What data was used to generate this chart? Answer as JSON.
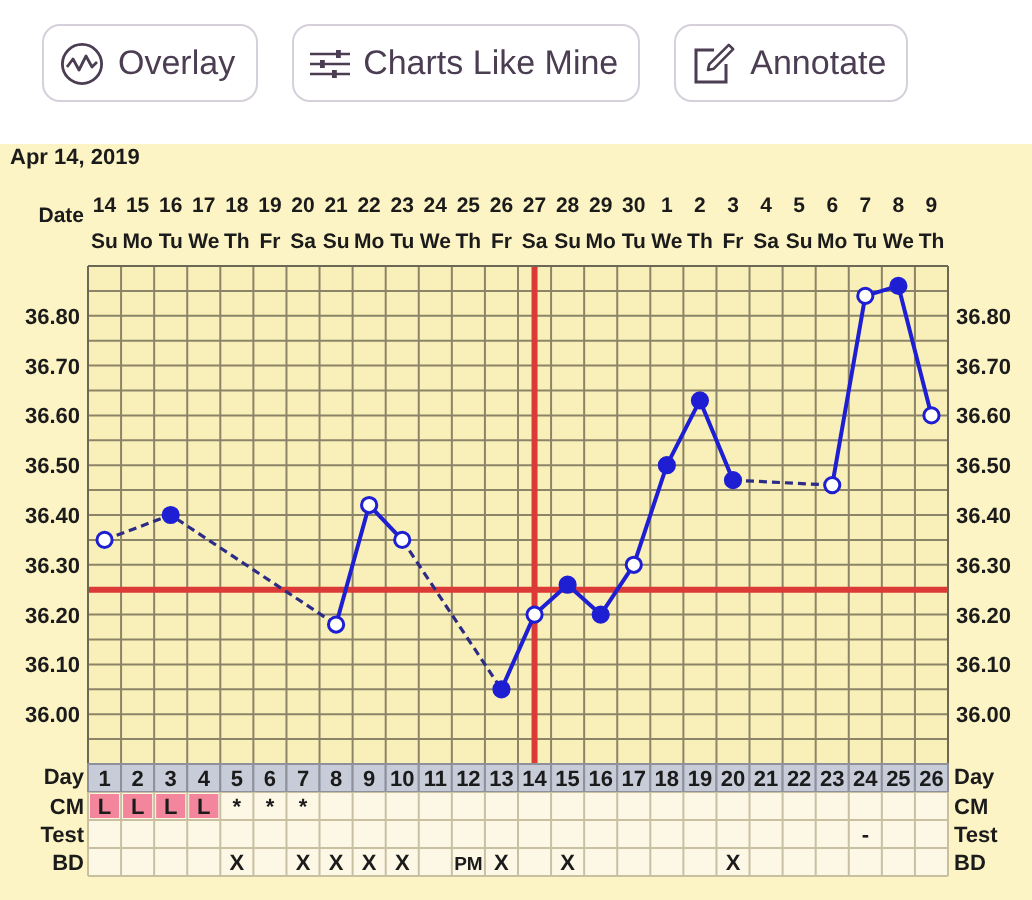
{
  "chart_data": [
    {
      "type": "other",
      "annotations": [
        "Overlay",
        "Charts Like Mine",
        "Annotate"
      ]
    },
    {
      "type": "line",
      "title": "Apr 14, 2019",
      "xlabel": "Day",
      "x2label": "Date",
      "x": [
        1,
        2,
        3,
        4,
        5,
        6,
        7,
        8,
        9,
        10,
        11,
        12,
        13,
        14,
        15,
        16,
        17,
        18,
        19,
        20,
        21,
        22,
        23,
        24,
        25,
        26
      ],
      "xlim": [
        0.5,
        26.5
      ],
      "xticks": [
        1,
        {
          "value": 1.5,
          "label": null
        },
        2,
        {
          "value": 2.5,
          "label": null
        },
        3,
        {
          "value": 3.5,
          "label": null
        },
        4,
        {
          "value": 4.5,
          "label": null
        },
        5,
        {
          "value": 5.5,
          "label": null
        },
        6,
        {
          "value": 6.5,
          "label": null
        },
        7,
        {
          "value": 7.5,
          "label": null
        },
        8,
        {
          "value": 8.5,
          "label": null
        },
        9,
        {
          "value": 9.5,
          "label": null
        },
        10,
        {
          "value": 10.5,
          "label": null
        },
        11,
        {
          "value": 11.5,
          "label": null
        },
        12,
        {
          "value": 12.5,
          "label": null
        },
        13,
        {
          "value": 13.5,
          "label": null
        },
        14,
        {
          "value": 14.5,
          "label": null
        },
        15,
        {
          "value": 15.5,
          "label": null
        },
        16,
        {
          "value": 16.5,
          "label": null
        },
        17,
        {
          "value": 17.5,
          "label": null
        },
        18,
        {
          "value": 18.5,
          "label": null
        },
        19,
        {
          "value": 19.5,
          "label": null
        },
        20,
        {
          "value": 20.5,
          "label": null
        },
        21,
        {
          "value": 21.5,
          "label": null
        },
        22,
        {
          "value": 22.5,
          "label": null
        },
        23,
        {
          "value": 23.5,
          "label": null
        },
        24,
        {
          "value": 24.5,
          "label": null
        },
        25,
        {
          "value": 25.5,
          "label": null
        },
        26
      ],
      "x2lim": [
        "2019-04-13T12:00",
        "2019-05-09T12:00"
      ],
      "x2ticks": [
        {
          "value": "2019-04-14",
          "label": "14\nSu"
        },
        {
          "value": "2019-04-15",
          "label": "15\nMo"
        },
        {
          "value": "2019-04-16",
          "label": "16\nTu"
        },
        {
          "value": "2019-04-17",
          "label": "17\nWe"
        },
        {
          "value": "2019-04-18",
          "label": "18\nTh"
        },
        {
          "value": "2019-04-19",
          "label": "19\nFr"
        },
        {
          "value": "2019-04-20",
          "label": "20\nSa"
        },
        {
          "value": "2019-04-21",
          "label": "21\nSu"
        },
        {
          "value": "2019-04-22",
          "label": "22\nMo"
        },
        {
          "value": "2019-04-23",
          "label": "23\nTu"
        },
        {
          "value": "2019-04-24",
          "label": "24\nWe"
        },
        {
          "value": "2019-04-25",
          "label": "25\nTh"
        },
        {
          "value": "2019-04-26",
          "label": "26\nFr"
        },
        {
          "value": "2019-04-27",
          "label": "27\nSa"
        },
        {
          "value": "2019-04-28",
          "label": "28\nSu"
        },
        {
          "value": "2019-04-29",
          "label": "29\nMo"
        },
        {
          "value": "2019-04-30",
          "label": "30\nTu"
        },
        {
          "value": "2019-05-01",
          "label": "1\nWe"
        },
        {
          "value": "2019-05-02",
          "label": "2\nTh"
        },
        {
          "value": "2019-05-03",
          "label": "3\nFr"
        },
        {
          "value": "2019-05-04",
          "label": "4\nSa"
        },
        {
          "value": "2019-05-05",
          "label": "5\nSu"
        },
        {
          "value": "2019-05-06",
          "label": "6\nMo"
        },
        {
          "value": "2019-05-07",
          "label": "7\nTu"
        },
        {
          "value": "2019-05-08",
          "label": "8\nWe"
        },
        {
          "value": "2019-05-09",
          "label": "9\nTh"
        }
      ],
      "ylim": [
        35.9,
        36.9
      ],
      "yticks": [
        {
          "value": 35.95,
          "label": null
        },
        {
          "value": 36,
          "label": "36.00"
        },
        {
          "value": 36.05,
          "label": null
        },
        {
          "value": 36.1,
          "label": "36.10"
        },
        {
          "value": 36.15,
          "label": null
        },
        {
          "value": 36.2,
          "label": "36.20"
        },
        {
          "value": 36.3,
          "label": "36.30"
        },
        {
          "value": 36.35,
          "label": null
        },
        {
          "value": 36.4,
          "label": "36.40"
        },
        {
          "value": 36.45,
          "label": null
        },
        {
          "value": 36.5,
          "label": "36.50"
        },
        {
          "value": 36.55,
          "label": null
        },
        {
          "value": 36.6,
          "label": "36.60"
        },
        {
          "value": 36.65,
          "label": null
        },
        {
          "value": 36.7,
          "label": "36.70"
        },
        {
          "value": 36.75,
          "label": null
        },
        {
          "value": 36.8,
          "label": "36.80"
        },
        {
          "value": 36.85,
          "label": null
        }
      ],
      "y2lim": [
        35.9,
        36.9
      ],
      "y2ticks": [
        {
          "value": 35.95,
          "label": null
        },
        {
          "value": 36,
          "label": "36.00"
        },
        {
          "value": 36.05,
          "label": null
        },
        {
          "value": 36.1,
          "label": "36.10"
        },
        {
          "value": 36.15,
          "label": null
        },
        {
          "value": 36.2,
          "label": "36.20"
        },
        {
          "value": 36.3,
          "label": "36.30"
        },
        {
          "value": 36.35,
          "label": null
        },
        {
          "value": 36.4,
          "label": "36.40"
        },
        {
          "value": 36.45,
          "label": null
        },
        {
          "value": 36.5,
          "label": "36.50"
        },
        {
          "value": 36.55,
          "label": null
        },
        {
          "value": 36.6,
          "label": "36.60"
        },
        {
          "value": 36.65,
          "label": null
        },
        {
          "value": 36.7,
          "label": "36.70"
        },
        {
          "value": 36.75,
          "label": null
        },
        {
          "value": 36.8,
          "label": "36.80"
        },
        {
          "value": 36.85,
          "label": null
        }
      ],
      "grid": true,
      "ref_lines": [
        {
          "axis": "y",
          "value": 36.25,
          "color": "#dc3a36"
        },
        {
          "axis": "x",
          "value": 14,
          "color": "#dc3a36"
        }
      ],
      "series": [
        {
          "color": "#1e1ed2",
          "marker": "circle",
          "line_style": "solid",
          "values": [
            36.35,
            null,
            36.4,
            null,
            null,
            null,
            null,
            36.18,
            36.42,
            36.35,
            null,
            null,
            36.05,
            36.2,
            36.26,
            36.2,
            36.3,
            36.5,
            36.63,
            36.47,
            null,
            null,
            36.46,
            36.84,
            36.86,
            36.6
          ],
          "colors": [
            "#ffffff",
            null,
            "#1e1ed2",
            null,
            null,
            null,
            null,
            "#ffffff",
            "#ffffff",
            "#ffffff",
            null,
            null,
            "#1e1ed2",
            "#ffffff",
            "#1e1ed2",
            "#1e1ed2",
            "#ffffff",
            "#1e1ed2",
            "#1e1ed2",
            "#1e1ed2",
            null,
            null,
            "#ffffff",
            "#ffffff",
            "#1e1ed2",
            "#ffffff"
          ]
        },
        {
          "color": "#2c2c86",
          "marker": "none",
          "line_style": "dashed",
          "x": [
            1,
            3,
            8,
            9,
            10,
            13,
            14,
            20,
            23
          ],
          "values": [
            36.35,
            36.4,
            36.18,
            null,
            36.35,
            36.05,
            null,
            36.47,
            36.46
          ]
        }
      ]
    },
    {
      "type": "heatmap",
      "tick_labels": "y",
      "categories": [
        null,
        null,
        null,
        null,
        null,
        null,
        null,
        null,
        null,
        null,
        null,
        null,
        null,
        null,
        null,
        null,
        null,
        null,
        null,
        null,
        null,
        null,
        null,
        null,
        null,
        null
      ],
      "y_categories": [
        "CM",
        "Test",
        "BD"
      ],
      "y2_categories": [
        "CM",
        "Test",
        "BD"
      ],
      "cells": [
        [
          null,
          null,
          null,
          null,
          null,
          null,
          null,
          null,
          null,
          null,
          null,
          null,
          null,
          null,
          null,
          null,
          null,
          null,
          null,
          null,
          null,
          null,
          null,
          null,
          null,
          null
        ],
        [
          null,
          null,
          null,
          null,
          null,
          null,
          null,
          null,
          null,
          null,
          null,
          null,
          null,
          null,
          null,
          null,
          null,
          null,
          null,
          null,
          null,
          null,
          null,
          null,
          null,
          null
        ],
        [
          null,
          null,
          null,
          null,
          null,
          null,
          null,
          null,
          null,
          null,
          null,
          null,
          null,
          null,
          null,
          null,
          null,
          null,
          null,
          null,
          null,
          null,
          null,
          null,
          null,
          null
        ]
      ],
      "cell_labels": [
        [
          "L",
          "L",
          "L",
          "L",
          "*",
          "*",
          "*",
          null,
          null,
          null,
          null,
          null,
          null,
          null,
          null,
          null,
          null,
          null,
          null,
          null,
          null,
          null,
          null,
          null,
          null,
          null
        ],
        [
          null,
          null,
          null,
          null,
          null,
          null,
          null,
          null,
          null,
          null,
          null,
          null,
          null,
          null,
          null,
          null,
          null,
          null,
          null,
          null,
          null,
          null,
          null,
          "-",
          null,
          null
        ],
        [
          null,
          null,
          null,
          null,
          "X",
          null,
          "X",
          "X",
          "X",
          "X",
          null,
          "PM",
          "X",
          null,
          "X",
          null,
          null,
          null,
          null,
          "X",
          null,
          null,
          null,
          null,
          null,
          null
        ]
      ],
      "colors": [
        [
          "#f3869d",
          "#f3869d",
          "#f3869d",
          "#f3869d",
          null,
          null,
          null,
          null,
          null,
          null,
          null,
          null,
          null,
          null,
          null,
          null,
          null,
          null,
          null,
          null,
          null,
          null,
          null,
          null,
          null,
          null
        ],
        [
          null,
          null,
          null,
          null,
          null,
          null,
          null,
          null,
          null,
          null,
          null,
          null,
          null,
          null,
          null,
          null,
          null,
          null,
          null,
          null,
          null,
          null,
          null,
          null,
          null,
          null
        ],
        [
          null,
          null,
          null,
          null,
          null,
          null,
          null,
          null,
          null,
          null,
          null,
          null,
          null,
          null,
          null,
          null,
          null,
          null,
          null,
          null,
          null,
          null,
          null,
          null,
          null,
          null
        ]
      ]
    }
  ]
}
